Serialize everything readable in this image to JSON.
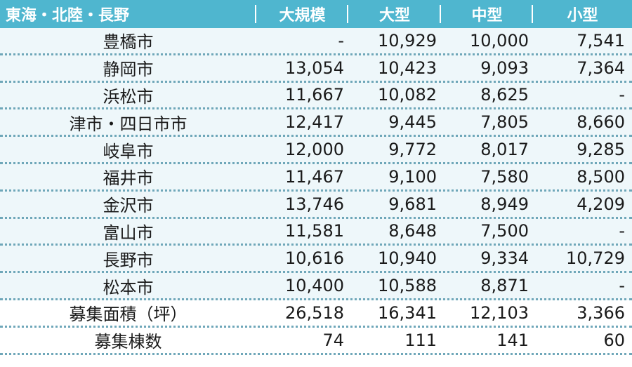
{
  "header": {
    "region": "東海・北陸・長野",
    "col1": "大規模",
    "col2": "大型",
    "col3": "中型",
    "col4": "小型"
  },
  "rows": [
    {
      "name": "豊橋市",
      "v1": "-",
      "v2": "10,929",
      "v3": "10,000",
      "v4": "7,541"
    },
    {
      "name": "静岡市",
      "v1": "13,054",
      "v2": "10,423",
      "v3": "9,093",
      "v4": "7,364"
    },
    {
      "name": "浜松市",
      "v1": "11,667",
      "v2": "10,082",
      "v3": "8,625",
      "v4": "-"
    },
    {
      "name": "津市・四日市市",
      "v1": "12,417",
      "v2": "9,445",
      "v3": "7,805",
      "v4": "8,660"
    },
    {
      "name": "岐阜市",
      "v1": "12,000",
      "v2": "9,772",
      "v3": "8,017",
      "v4": "9,285"
    },
    {
      "name": "福井市",
      "v1": "11,467",
      "v2": "9,100",
      "v3": "7,580",
      "v4": "8,500"
    },
    {
      "name": "金沢市",
      "v1": "13,746",
      "v2": "9,681",
      "v3": "8,949",
      "v4": "4,209"
    },
    {
      "name": "富山市",
      "v1": "11,581",
      "v2": "8,648",
      "v3": "7,500",
      "v4": "-"
    },
    {
      "name": "長野市",
      "v1": "10,616",
      "v2": "10,940",
      "v3": "9,334",
      "v4": "10,729"
    },
    {
      "name": "松本市",
      "v1": "10,400",
      "v2": "10,588",
      "v3": "8,871",
      "v4": "-"
    }
  ],
  "summary": [
    {
      "name": "募集面積（坪）",
      "v1": "26,518",
      "v2": "16,341",
      "v3": "12,103",
      "v4": "3,366"
    },
    {
      "name": "募集棟数",
      "v1": "74",
      "v2": "111",
      "v3": "141",
      "v4": "60"
    }
  ],
  "colors": {
    "header_bg": "#4fb6cf",
    "row_tint": "#eef7fa",
    "divider": "#6fa7b9"
  }
}
